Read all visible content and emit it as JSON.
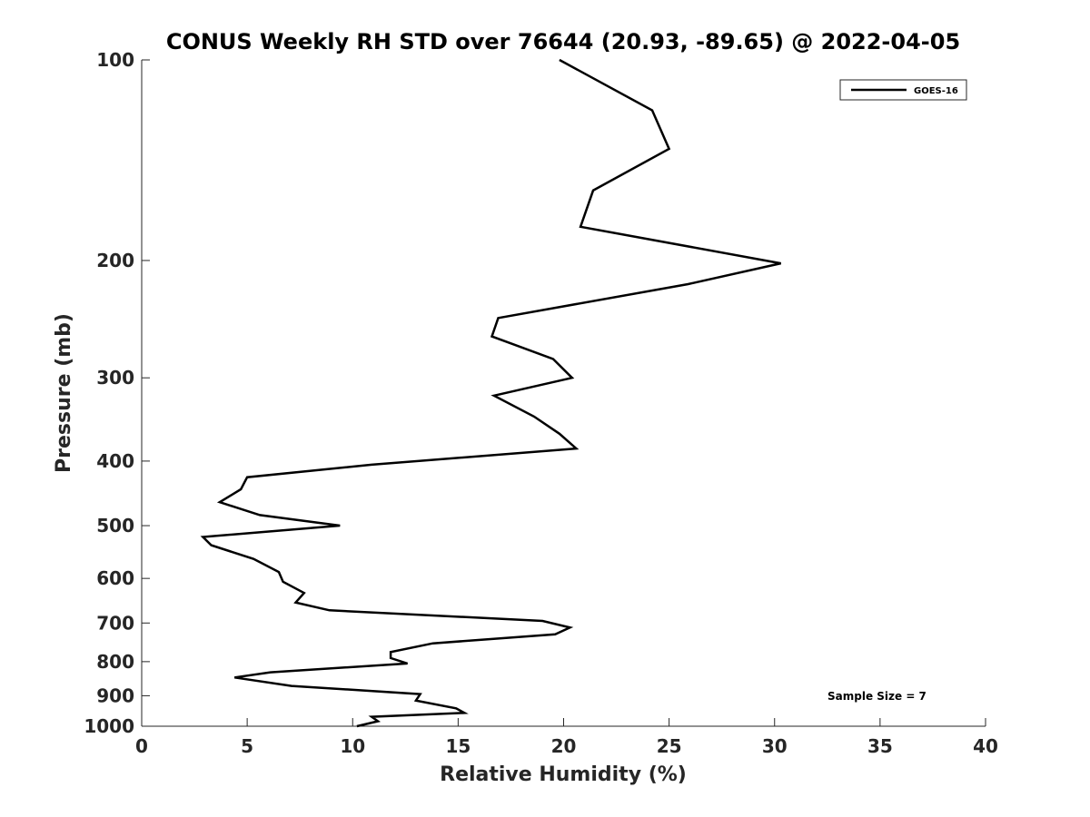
{
  "chart_data": {
    "type": "line",
    "title": "CONUS Weekly RH STD over 76644 (20.93, -89.65) @ 2022-04-05",
    "xlabel": "Relative Humidity (%)",
    "ylabel": "Pressure (mb)",
    "xlim": [
      0,
      40
    ],
    "ylim": [
      1000,
      100
    ],
    "yscale": "log",
    "y_reversed": true,
    "x_ticks": [
      0,
      5,
      10,
      15,
      20,
      25,
      30,
      35,
      40
    ],
    "y_ticks": [
      100,
      200,
      300,
      400,
      500,
      600,
      700,
      800,
      900,
      1000
    ],
    "grid": false,
    "legend_position": "top-right",
    "annotation": "Sample Size = 7",
    "series": [
      {
        "name": "GOES-16",
        "color": "#000000",
        "x": [
          19.8,
          24.2,
          25.0,
          21.4,
          20.8,
          30.3,
          25.9,
          16.9,
          16.6,
          19.5,
          20.4,
          16.7,
          18.6,
          19.8,
          20.6,
          10.9,
          5.0,
          4.7,
          3.7,
          5.6,
          9.4,
          2.9,
          3.3,
          5.3,
          6.5,
          6.7,
          7.7,
          7.3,
          8.9,
          19.0,
          20.3,
          19.6,
          13.8,
          11.8,
          11.8,
          12.6,
          6.1,
          4.4,
          7.1,
          13.2,
          13.0,
          14.9,
          15.3,
          10.9,
          11.2,
          10.2
        ],
        "y": [
          100,
          119,
          136,
          157,
          178,
          202,
          217,
          244,
          260,
          281,
          300,
          319,
          343,
          364,
          383,
          405,
          423,
          441,
          461,
          482,
          500,
          520,
          535,
          561,
          587,
          607,
          631,
          652,
          670,
          695,
          711,
          728,
          751,
          774,
          790,
          805,
          830,
          845,
          870,
          895,
          915,
          940,
          955,
          968,
          983,
          1000
        ]
      }
    ]
  }
}
